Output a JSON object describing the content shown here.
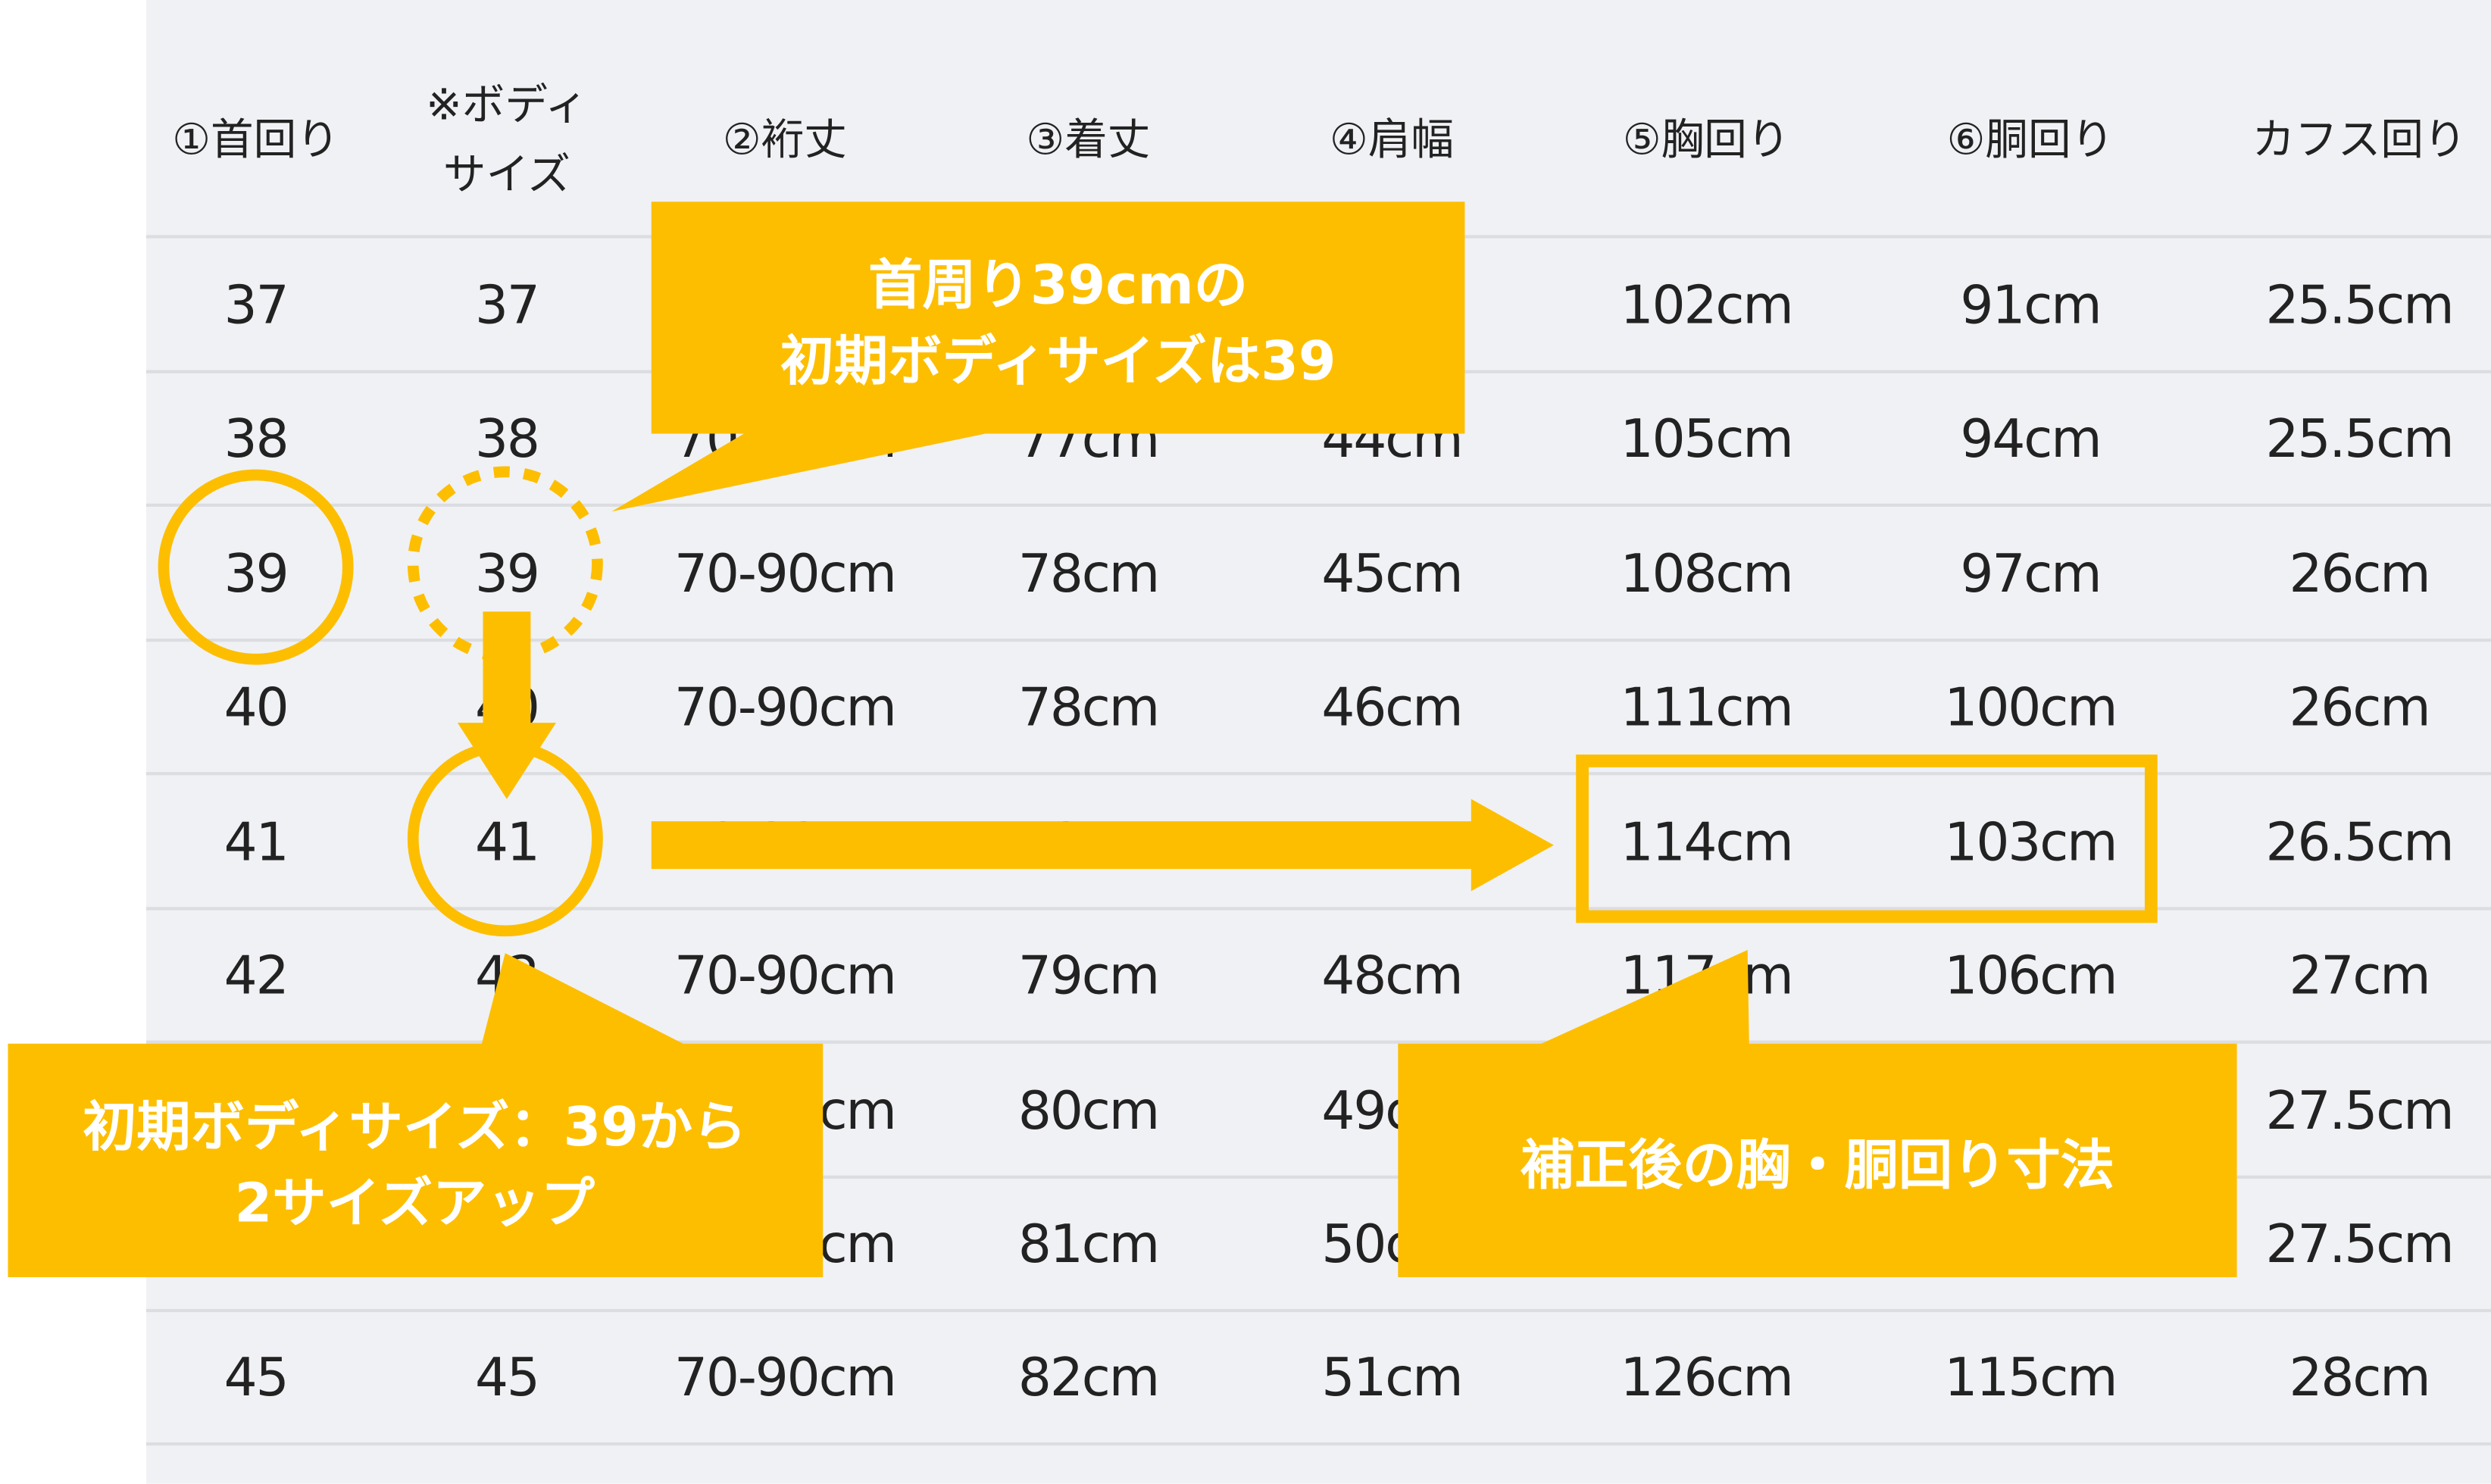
{
  "accent_color": "#FDBE00",
  "table": {
    "headers": [
      "①首回り",
      "※ボディ\nサイズ",
      "②裄丈",
      "③着丈",
      "④肩幅",
      "⑤胸回り",
      "⑥胴回り",
      "カフス回り"
    ],
    "rows": [
      [
        "37",
        "37",
        "",
        "",
        "",
        "102cm",
        "91cm",
        "25.5cm"
      ],
      [
        "38",
        "38",
        "70-90cm",
        "77cm",
        "44cm",
        "105cm",
        "94cm",
        "25.5cm"
      ],
      [
        "39",
        "39",
        "70-90cm",
        "78cm",
        "45cm",
        "108cm",
        "97cm",
        "26cm"
      ],
      [
        "40",
        "40",
        "70-90cm",
        "78cm",
        "46cm",
        "111cm",
        "100cm",
        "26cm"
      ],
      [
        "41",
        "41",
        "70-90cm",
        "79cm",
        "47cm",
        "114cm",
        "103cm",
        "26.5cm"
      ],
      [
        "42",
        "42",
        "70-90cm",
        "79cm",
        "48cm",
        "117cm",
        "106cm",
        "27cm"
      ],
      [
        "",
        "",
        "70-90cm",
        "80cm",
        "49cm",
        "",
        "",
        "27.5cm"
      ],
      [
        "",
        "",
        "70-90cm",
        "81cm",
        "50cm",
        "",
        "",
        "27.5cm"
      ],
      [
        "45",
        "45",
        "70-90cm",
        "82cm",
        "51cm",
        "126cm",
        "115cm",
        "28cm"
      ]
    ]
  },
  "callouts": {
    "top": [
      "首周り39cmの",
      "初期ボディサイズは39"
    ],
    "bottom_left": [
      "初期ボディサイズ：39から",
      "2サイズアップ"
    ],
    "bottom_right": [
      "補正後の胸・胴回り寸法"
    ]
  }
}
